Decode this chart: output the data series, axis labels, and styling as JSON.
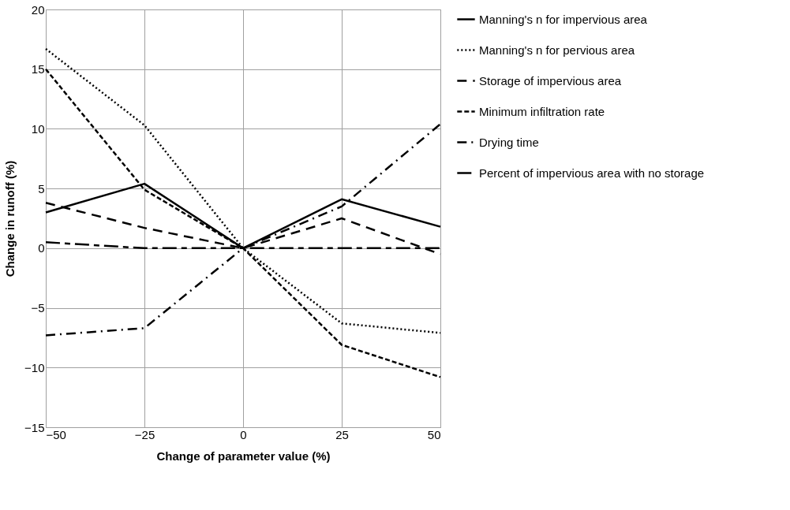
{
  "chart_data": {
    "type": "line",
    "xlabel": "Change of parameter value (%)",
    "ylabel": "Change in runoff (%)",
    "x": [
      -50,
      -25,
      0,
      25,
      50
    ],
    "xlim": [
      -50,
      50
    ],
    "xticks": [
      -50,
      -25,
      0,
      25,
      50
    ],
    "ylim": [
      -15,
      20
    ],
    "yticks": [
      -15,
      -10,
      -5,
      0,
      5,
      10,
      15,
      20
    ],
    "grid": true,
    "legend": "right",
    "marker": "none",
    "series": [
      {
        "name": "Manning's n for impervious area",
        "color": "#000000",
        "line_style": "solid",
        "values": [
          3.0,
          5.4,
          0,
          4.1,
          1.8
        ]
      },
      {
        "name": "Manning's n for pervious area",
        "color": "#000000",
        "line_style": "dotted",
        "values": [
          16.7,
          10.3,
          0,
          -6.3,
          -7.1
        ]
      },
      {
        "name": "Storage of impervious area",
        "color": "#000000",
        "line_style": "dashed",
        "values": [
          3.8,
          1.7,
          0,
          2.5,
          -0.5
        ]
      },
      {
        "name": "Minimum infiltration rate",
        "color": "#000000",
        "line_style": "short dashed",
        "values": [
          15.0,
          4.9,
          0,
          -8.1,
          -10.8
        ]
      },
      {
        "name": "Drying time",
        "color": "#000000",
        "line_style": "dash dot",
        "values": [
          -7.3,
          -6.7,
          0,
          3.5,
          10.4
        ]
      },
      {
        "name": "Percent of impervious area with no storage",
        "color": "#000000",
        "line_style": "long dash short dash",
        "values": [
          0.5,
          0,
          0,
          0,
          0
        ]
      }
    ]
  }
}
